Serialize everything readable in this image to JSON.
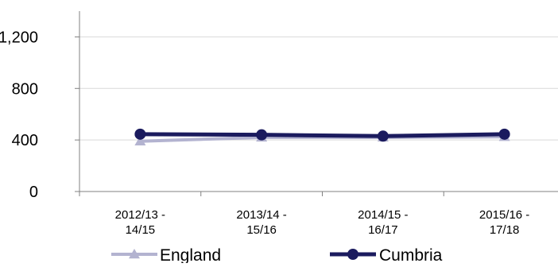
{
  "chart_data": {
    "type": "line",
    "title": "",
    "xlabel": "",
    "ylabel": "",
    "categories": [
      [
        "2012/13 -",
        "14/15"
      ],
      [
        "2013/14 -",
        "15/16"
      ],
      [
        "2014/15 -",
        "16/17"
      ],
      [
        "2015/16 -",
        "17/18"
      ]
    ],
    "ylim": [
      0,
      1400
    ],
    "yticks": [
      0,
      400,
      800,
      1200
    ],
    "ytick_labels": [
      "0",
      "400",
      "800",
      "1,200"
    ],
    "grid": true,
    "legend_position": "bottom",
    "series": [
      {
        "name": "England",
        "values": [
          390,
          420,
          420,
          425
        ],
        "color": "#b3b3d0",
        "marker": "triangle"
      },
      {
        "name": "Cumbria",
        "values": [
          445,
          440,
          430,
          445
        ],
        "color": "#1b1b5e",
        "marker": "circle"
      }
    ]
  }
}
